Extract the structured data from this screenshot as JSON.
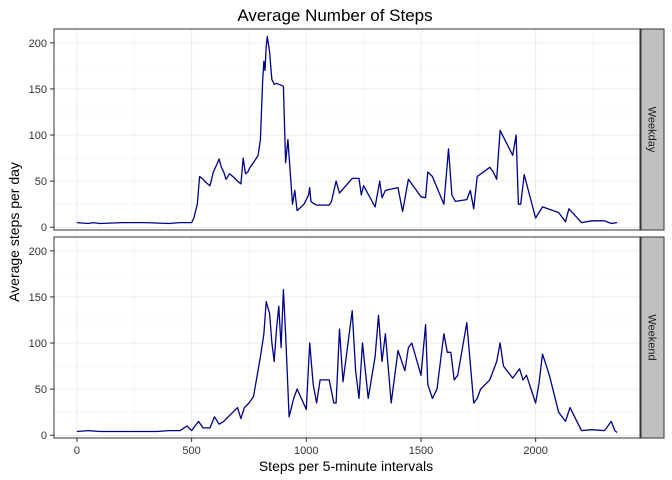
{
  "chart_data": {
    "type": "line",
    "title": "Average Number of Steps",
    "xlabel": "Steps per 5-minute intervals",
    "ylabel": "Average steps per day",
    "xlim": [
      -100,
      2455
    ],
    "ylim": [
      -3,
      215
    ],
    "x_ticks": [
      0,
      500,
      1000,
      1500,
      2000
    ],
    "y_ticks": [
      0,
      50,
      100,
      150,
      200
    ],
    "grid": true,
    "line_color": "#00008B",
    "panel_border_color": "#333333",
    "strip_fill": "#C0C0C0",
    "facets": [
      {
        "label": "Weekday",
        "x": [
          0,
          50,
          70,
          100,
          200,
          300,
          400,
          450,
          480,
          500,
          510,
          525,
          535,
          550,
          565,
          580,
          595,
          610,
          620,
          630,
          640,
          650,
          665,
          680,
          700,
          715,
          725,
          735,
          745,
          755,
          775,
          790,
          800,
          810,
          815,
          820,
          825,
          830,
          840,
          845,
          850,
          855,
          860,
          870,
          880,
          900,
          910,
          920,
          930,
          940,
          950,
          960,
          990,
          1010,
          1015,
          1020,
          1030,
          1045,
          1100,
          1110,
          1130,
          1145,
          1200,
          1230,
          1240,
          1250,
          1300,
          1320,
          1330,
          1345,
          1400,
          1420,
          1445,
          1500,
          1520,
          1530,
          1550,
          1600,
          1620,
          1635,
          1650,
          1700,
          1715,
          1730,
          1745,
          1800,
          1815,
          1830,
          1845,
          1900,
          1915,
          1925,
          1935,
          1950,
          2000,
          2030,
          2100,
          2130,
          2145,
          2200,
          2245,
          2300,
          2330,
          2355
        ],
        "y": [
          5,
          4,
          5,
          4,
          5,
          5,
          4,
          5,
          5,
          5,
          10,
          25,
          55,
          52,
          48,
          45,
          60,
          68,
          74,
          65,
          60,
          52,
          58,
          55,
          50,
          47,
          75,
          58,
          60,
          65,
          72,
          78,
          95,
          160,
          180,
          170,
          196,
          207,
          190,
          175,
          160,
          158,
          155,
          156,
          155,
          153,
          70,
          95,
          60,
          25,
          40,
          18,
          25,
          35,
          43,
          28,
          26,
          24,
          24,
          28,
          50,
          37,
          53,
          53,
          35,
          45,
          22,
          50,
          32,
          40,
          43,
          17,
          52,
          33,
          32,
          60,
          55,
          25,
          85,
          35,
          28,
          30,
          40,
          20,
          55,
          65,
          60,
          52,
          105,
          78,
          100,
          25,
          25,
          57,
          10,
          22,
          16,
          6,
          20,
          5,
          7,
          7,
          4,
          5
        ]
      },
      {
        "label": "Weekend",
        "x": [
          0,
          50,
          100,
          200,
          300,
          350,
          400,
          450,
          480,
          500,
          530,
          550,
          580,
          600,
          620,
          640,
          680,
          700,
          715,
          730,
          750,
          770,
          800,
          815,
          825,
          840,
          850,
          860,
          870,
          880,
          890,
          900,
          910,
          925,
          945,
          960,
          1000,
          1015,
          1030,
          1045,
          1060,
          1100,
          1120,
          1130,
          1145,
          1160,
          1200,
          1215,
          1230,
          1245,
          1270,
          1300,
          1315,
          1330,
          1345,
          1370,
          1400,
          1430,
          1445,
          1460,
          1500,
          1520,
          1530,
          1550,
          1570,
          1600,
          1615,
          1630,
          1645,
          1660,
          1700,
          1730,
          1745,
          1760,
          1800,
          1830,
          1845,
          1860,
          1900,
          1930,
          1945,
          1960,
          2000,
          2015,
          2030,
          2060,
          2100,
          2130,
          2150,
          2200,
          2245,
          2300,
          2330,
          2345,
          2355
        ],
        "y": [
          4,
          5,
          4,
          4,
          4,
          4,
          5,
          5,
          10,
          5,
          15,
          8,
          8,
          20,
          12,
          15,
          25,
          30,
          18,
          30,
          35,
          42,
          85,
          110,
          145,
          132,
          100,
          80,
          115,
          140,
          95,
          158,
          110,
          20,
          40,
          50,
          28,
          100,
          55,
          35,
          60,
          60,
          35,
          35,
          115,
          58,
          135,
          70,
          40,
          100,
          40,
          85,
          130,
          80,
          110,
          35,
          92,
          70,
          95,
          100,
          65,
          120,
          55,
          40,
          50,
          110,
          90,
          90,
          60,
          65,
          122,
          35,
          40,
          50,
          60,
          80,
          100,
          75,
          62,
          72,
          60,
          65,
          35,
          57,
          88,
          65,
          25,
          15,
          30,
          5,
          6,
          5,
          15,
          5,
          3
        ]
      }
    ]
  }
}
